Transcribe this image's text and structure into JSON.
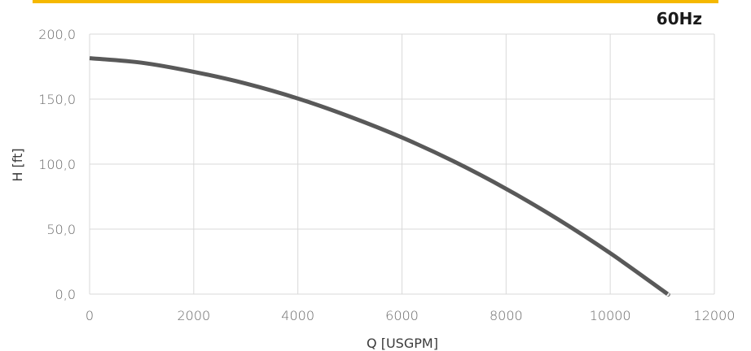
{
  "header": {
    "accent_color": "#f5b800",
    "frequency_label": "60Hz"
  },
  "chart_data": {
    "type": "line",
    "title": "",
    "xlabel": "Q [USGPM]",
    "ylabel": "H [ft]",
    "xlim": [
      0,
      12000
    ],
    "ylim": [
      0,
      200
    ],
    "x_ticks": [
      0,
      2000,
      4000,
      6000,
      8000,
      10000,
      12000
    ],
    "x_tick_labels": [
      "0",
      "2000",
      "4000",
      "6000",
      "8000",
      "10000",
      "12000"
    ],
    "y_ticks": [
      0,
      50,
      100,
      150,
      200
    ],
    "y_tick_labels": [
      "0,0",
      "50,0",
      "100,0",
      "150,0",
      "200,0"
    ],
    "grid": true,
    "series": [
      {
        "color": "#595959",
        "x": [
          0,
          1000,
          2000,
          3000,
          4000,
          5000,
          6000,
          7000,
          8000,
          9000,
          10000,
          11000,
          11100
        ],
        "y": [
          181.5,
          178,
          171,
          162,
          150.5,
          136.5,
          120.5,
          102,
          81,
          57.5,
          31.5,
          3,
          0
        ]
      }
    ]
  }
}
